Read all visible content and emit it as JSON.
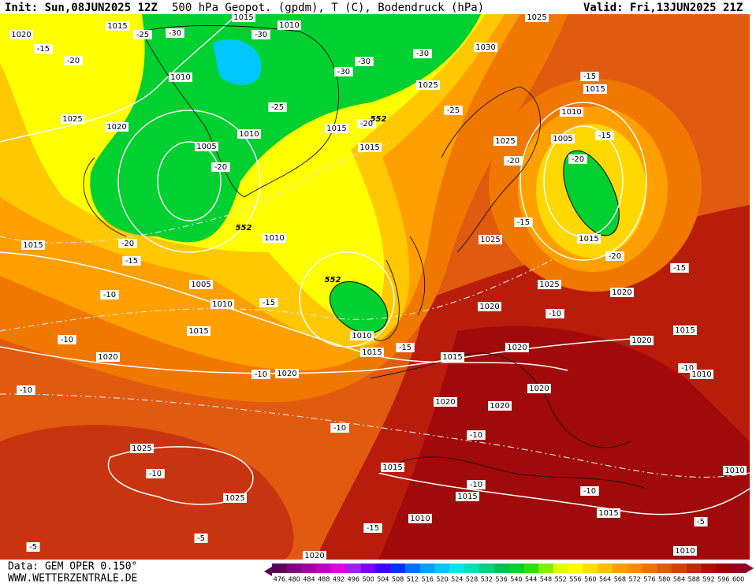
{
  "header": {
    "init": "Init: Sun,08JUN2025 12Z",
    "title": "500 hPa Geopot. (gpdm), T (C), Bodendruck (hPa)",
    "valid": "Valid: Fri,13JUN2025 21Z"
  },
  "footer": {
    "model": "Data: GEM OPER 0.150°",
    "site": "WWW.WETTERZENTRALE.DE"
  },
  "colorbar": {
    "labels": [
      476,
      480,
      484,
      488,
      492,
      496,
      500,
      504,
      508,
      512,
      516,
      520,
      524,
      528,
      532,
      536,
      540,
      544,
      548,
      552,
      556,
      560,
      564,
      568,
      572,
      576,
      580,
      584,
      588,
      592,
      596,
      600
    ],
    "colors": [
      "#5a005a",
      "#800080",
      "#a000a0",
      "#c000c0",
      "#e000e0",
      "#a020f0",
      "#7a00ff",
      "#4000ff",
      "#0030ff",
      "#0070ff",
      "#00a0ff",
      "#00c8ff",
      "#00e8e8",
      "#00e0b0",
      "#00d080",
      "#00c050",
      "#00d030",
      "#30e000",
      "#80f000",
      "#e0ff00",
      "#ffff00",
      "#ffe000",
      "#ffc000",
      "#ffa000",
      "#ff8c00",
      "#f07000",
      "#e05a00",
      "#d04000",
      "#c02800",
      "#b01000",
      "#a00000",
      "#900020"
    ]
  },
  "map_labels": [
    "1020",
    "-15",
    "1015",
    "-25",
    "-30",
    "-20",
    "1010",
    "1025",
    "1020",
    "1005",
    "-20",
    "1010",
    "-25",
    "1015",
    "1010",
    "-30",
    "-30",
    "-30",
    "1015",
    "-20",
    "552",
    "1015",
    "1025",
    "-30",
    "1030",
    "-25",
    "1025",
    "-15",
    "1015",
    "1010",
    "1025",
    "-20",
    "1005",
    "-15",
    "-20",
    "1015",
    "-20",
    "-15",
    "1025",
    "-15",
    "1025",
    "1020",
    "552",
    "1010",
    "1015",
    "-20",
    "-15",
    "1005",
    "1010",
    "-10",
    "-15",
    "552",
    "1015",
    "-10",
    "1020",
    "1010",
    "1015",
    "-15",
    "1015",
    "1020",
    "-10",
    "1020",
    "1020",
    "1015",
    "1020",
    "-10",
    "1010",
    "-10",
    "1020",
    "-10",
    "1020",
    "1020",
    "-10",
    "-10",
    "1025",
    "-10",
    "1015",
    "-10",
    "1015",
    "-10",
    "1025",
    "1010",
    "1015",
    "1010",
    "-15",
    "-5",
    "-5",
    "-5",
    "1020",
    "1010"
  ]
}
